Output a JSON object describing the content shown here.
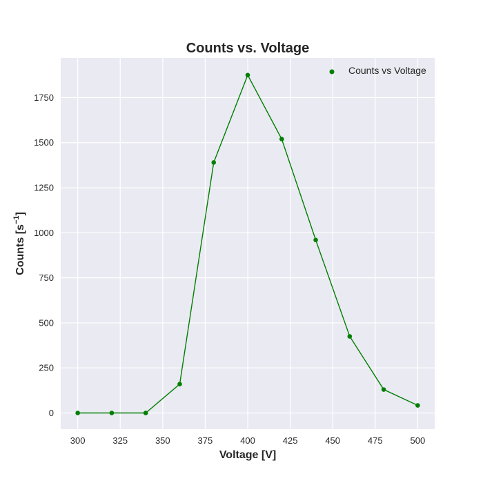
{
  "chart_data": {
    "type": "line",
    "title": "Counts vs. Voltage",
    "xlabel": "Voltage [V]",
    "ylabel_main": "Counts [s",
    "ylabel_sup": "−1",
    "ylabel_end": "]",
    "xlim": [
      290,
      510
    ],
    "ylim": [
      -90,
      1970
    ],
    "x_ticks": [
      300,
      325,
      350,
      375,
      400,
      425,
      450,
      475,
      500
    ],
    "y_ticks": [
      0,
      250,
      500,
      750,
      1000,
      1250,
      1500,
      1750
    ],
    "grid": true,
    "legend_position": "top-right",
    "colors": {
      "series": "#007f00",
      "plot_bg": "#eaeaf2",
      "grid": "#ffffff"
    },
    "series": [
      {
        "name": "Counts vs Voltage",
        "x": [
          300,
          320,
          340,
          360,
          380,
          400,
          420,
          440,
          460,
          480,
          500
        ],
        "y": [
          0,
          0,
          0,
          160,
          1390,
          1875,
          1520,
          960,
          425,
          130,
          42
        ]
      }
    ]
  }
}
